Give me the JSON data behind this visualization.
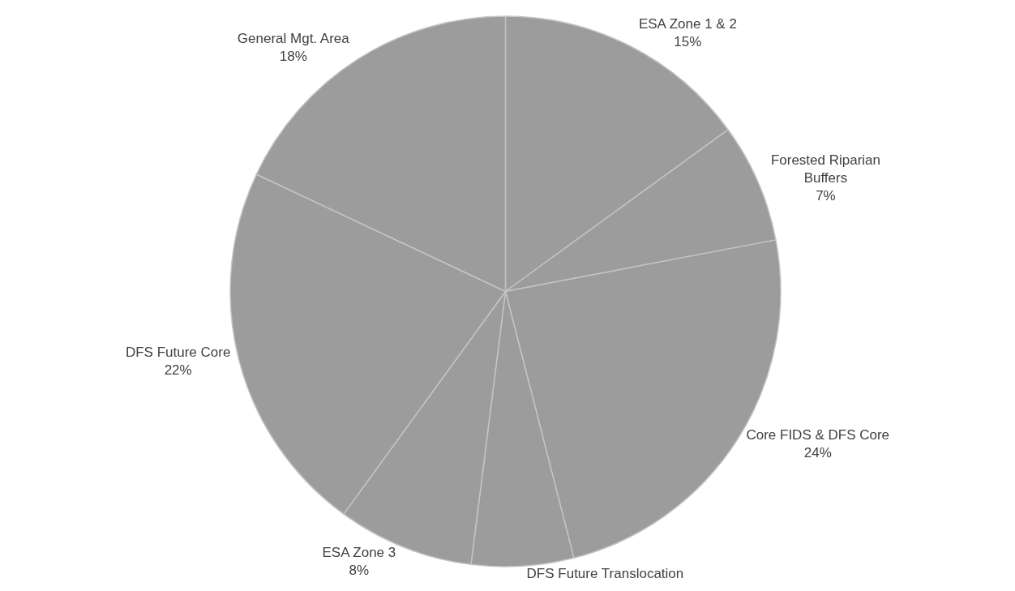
{
  "chart_data": {
    "type": "pie",
    "categories": [
      "ESA Zone 1 & 2",
      "Forested Riparian Buffers",
      "Core FIDS & DFS Core",
      "DFS Future Translocation",
      "ESA Zone 3",
      "DFS Future Core",
      "General Mgt. Area"
    ],
    "values": [
      15,
      7,
      24,
      6,
      8,
      22,
      18
    ],
    "value_labels": [
      "15%",
      "7%",
      "24%",
      null,
      "8%",
      "22%",
      "18%"
    ],
    "colors": [
      "#9c9c9c",
      "#9c9c9c",
      "#9c9c9c",
      "#9c9c9c",
      "#9c9c9c",
      "#9c9c9c",
      "#9c9c9c"
    ],
    "legend": false
  }
}
